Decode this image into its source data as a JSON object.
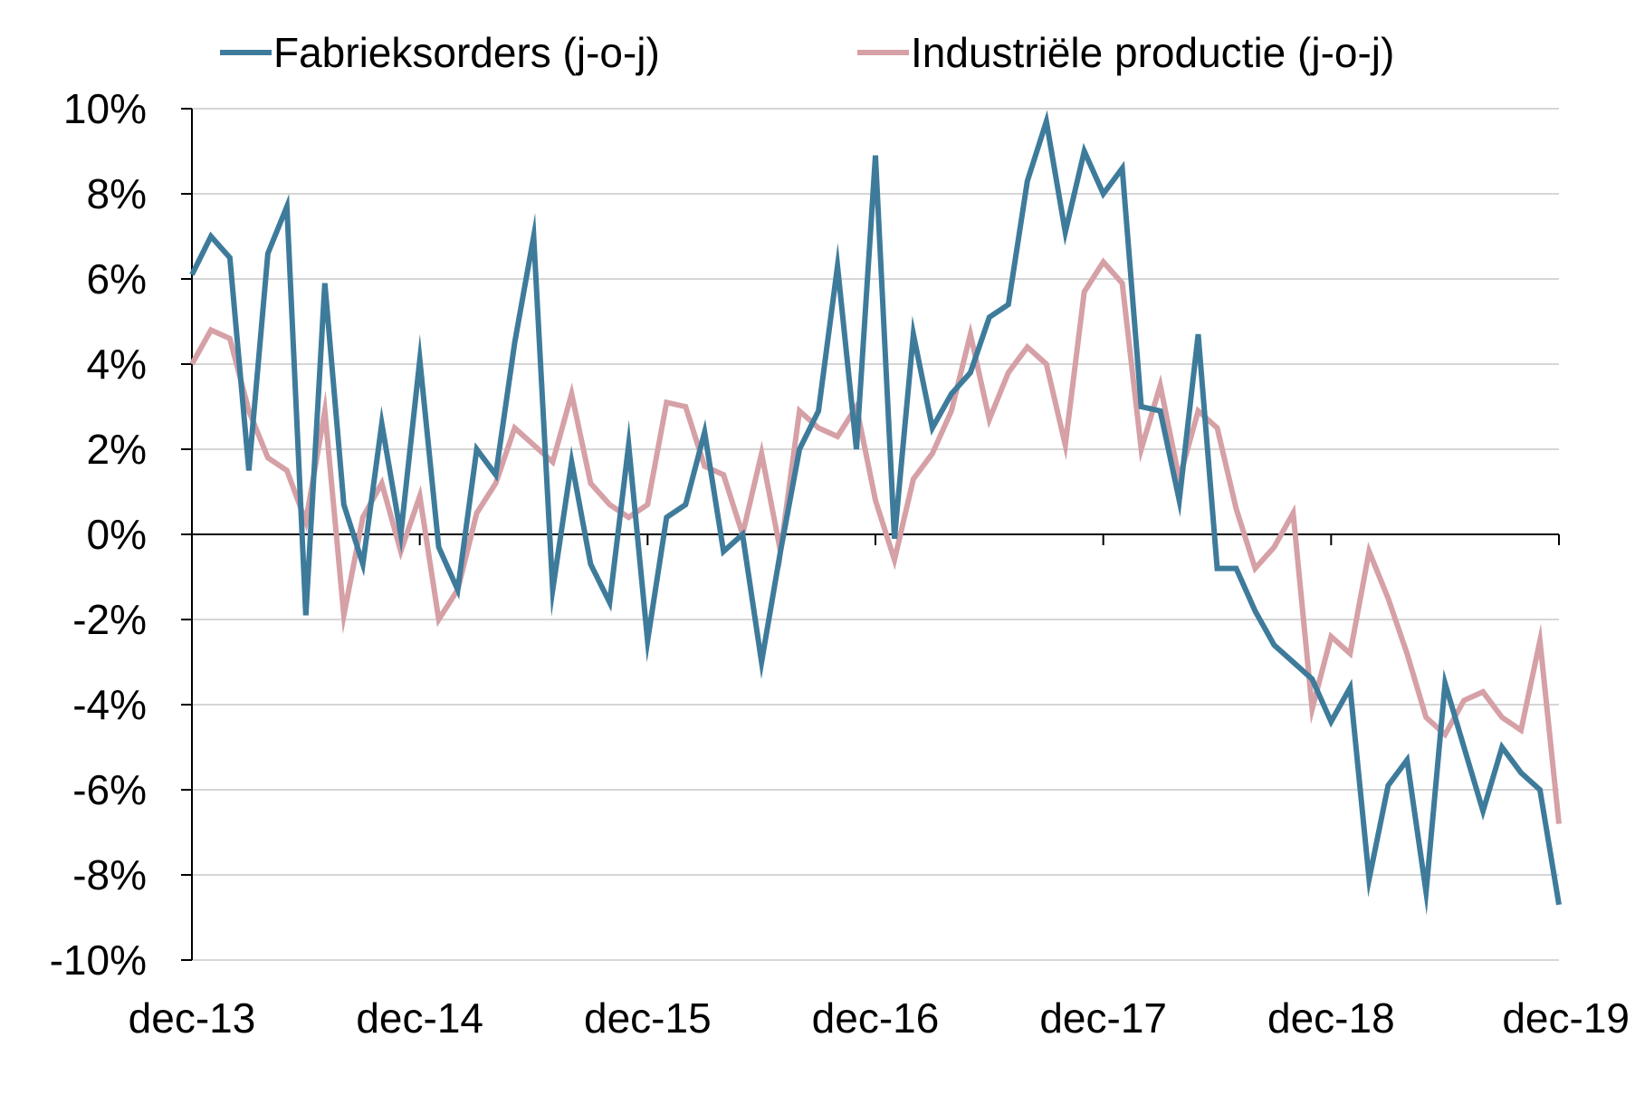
{
  "chart_data": {
    "type": "line",
    "title": "",
    "xlabel": "",
    "ylabel": "",
    "ylim": [
      -10,
      10
    ],
    "y_ticks": [
      10,
      8,
      6,
      4,
      2,
      0,
      -2,
      -4,
      -6,
      -8,
      -10
    ],
    "y_tick_labels": [
      "10%",
      "8%",
      "6%",
      "4%",
      "2%",
      "0%",
      "-2%",
      "-4%",
      "-6%",
      "-8%",
      "-10%"
    ],
    "x_tick_labels": [
      "dec-13",
      "dec-14",
      "dec-15",
      "dec-16",
      "dec-17",
      "dec-18",
      "dec-19"
    ],
    "x_range": [
      "dec-13",
      "dec-19"
    ],
    "grid": "horizontal",
    "legend_position": "top",
    "series": [
      {
        "name": "Fabrieksorders (j-o-j)",
        "color": "#3e7b9b",
        "values": [
          6.1,
          7.0,
          6.5,
          1.5,
          6.6,
          7.7,
          -1.9,
          5.9,
          0.7,
          -0.7,
          2.6,
          0.0,
          4.1,
          -0.3,
          -1.3,
          2.0,
          1.4,
          4.5,
          7.0,
          -1.3,
          1.7,
          -0.7,
          -1.6,
          2.1,
          -2.5,
          0.4,
          0.7,
          2.4,
          -0.4,
          0.0,
          -3.0,
          -0.4,
          2.0,
          2.9,
          6.3,
          2.0,
          8.9,
          -0.1,
          4.7,
          2.5,
          3.3,
          3.8,
          5.1,
          5.4,
          8.3,
          9.7,
          7.1,
          9.0,
          8.0,
          8.6,
          3.0,
          2.9,
          0.8,
          4.7,
          -0.8,
          -0.8,
          -1.8,
          -2.6,
          -3.0,
          -3.4,
          -4.4,
          -3.6,
          -8.1,
          -5.9,
          -5.3,
          -8.4,
          -3.5,
          -5.0,
          -6.5,
          -5.0,
          -5.6,
          -6.0,
          -8.7
        ]
      },
      {
        "name": "Industriële productie (j-o-j)",
        "color": "#d5a0a6",
        "values": [
          4.0,
          4.8,
          4.6,
          2.9,
          1.8,
          1.5,
          0.3,
          2.9,
          -1.9,
          0.4,
          1.2,
          -0.4,
          0.9,
          -2.0,
          -1.3,
          0.5,
          1.2,
          2.5,
          2.1,
          1.7,
          3.3,
          1.2,
          0.7,
          0.4,
          0.7,
          3.1,
          3.0,
          1.6,
          1.4,
          0.0,
          1.9,
          -0.4,
          2.9,
          2.5,
          2.3,
          3.0,
          0.8,
          -0.6,
          1.3,
          1.9,
          2.9,
          4.7,
          2.7,
          3.8,
          4.4,
          4.0,
          2.1,
          5.7,
          6.4,
          5.9,
          2.0,
          3.5,
          1.3,
          2.9,
          2.5,
          0.6,
          -0.8,
          -0.3,
          0.5,
          -4.1,
          -2.4,
          -2.8,
          -0.4,
          -1.5,
          -2.8,
          -4.3,
          -4.7,
          -3.9,
          -3.7,
          -4.3,
          -4.6,
          -2.5,
          -6.8
        ]
      }
    ]
  }
}
